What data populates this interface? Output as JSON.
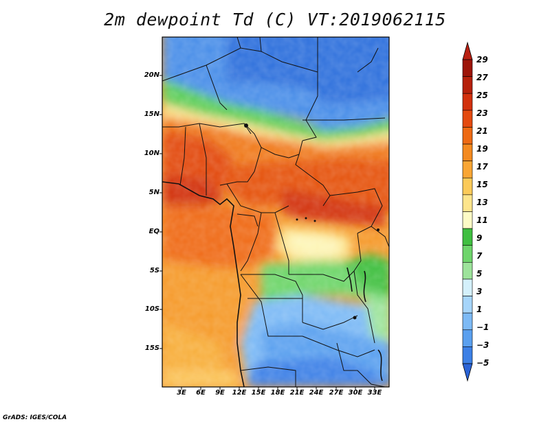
{
  "title": "2m dewpoint Td (C) VT:2019062115",
  "footer": "GrADS: IGES/COLA",
  "map": {
    "lat_labels": [
      "20N",
      "15N",
      "10N",
      "5N",
      "EQ",
      "5S",
      "10S",
      "15S"
    ],
    "lon_labels": [
      "3E",
      "6E",
      "9E",
      "12E",
      "15E",
      "18E",
      "21E",
      "24E",
      "27E",
      "30E",
      "33E"
    ]
  },
  "colorbar": {
    "labels": [
      "29",
      "27",
      "25",
      "23",
      "21",
      "19",
      "17",
      "15",
      "13",
      "11",
      "9",
      "7",
      "5",
      "3",
      "1",
      "−1",
      "−3",
      "−5"
    ],
    "colors": [
      "#2c69d8",
      "#3c80e6",
      "#5aa0ef",
      "#7dbaf5",
      "#a6d5fa",
      "#d4f0fb",
      "#9de39b",
      "#6ed56b",
      "#3fbf40",
      "#fdfbc6",
      "#fde58c",
      "#fbca59",
      "#f9a634",
      "#f48a1f",
      "#ee6a13",
      "#e44a0f",
      "#d2300c",
      "#b6200a",
      "#9d1408"
    ],
    "cap_top": "#b81f12",
    "cap_bottom": "#2a63d6"
  }
}
